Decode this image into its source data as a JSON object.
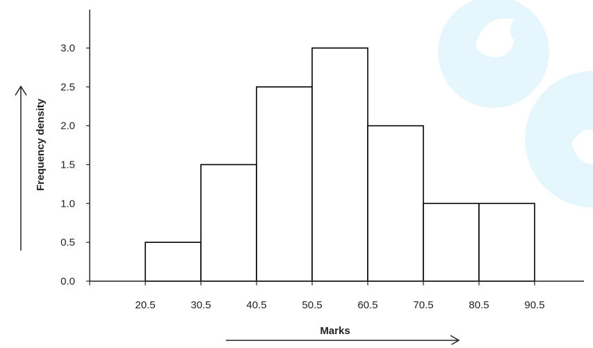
{
  "chart_data": {
    "type": "bar",
    "xlabel": "Marks",
    "ylabel": "Frequency density",
    "bins": [
      {
        "start": 20.5,
        "end": 30.5,
        "value": 0.5
      },
      {
        "start": 30.5,
        "end": 40.5,
        "value": 1.5
      },
      {
        "start": 40.5,
        "end": 50.5,
        "value": 2.5
      },
      {
        "start": 50.5,
        "end": 60.5,
        "value": 3.0
      },
      {
        "start": 60.5,
        "end": 70.5,
        "value": 2.0
      },
      {
        "start": 70.5,
        "end": 80.5,
        "value": 1.0
      },
      {
        "start": 80.5,
        "end": 90.5,
        "value": 1.0
      }
    ],
    "x_ticks": [
      "20.5",
      "30.5",
      "40.5",
      "50.5",
      "60.5",
      "70.5",
      "80.5",
      "90.5"
    ],
    "y_ticks": [
      "0.0",
      "0.5",
      "1.0",
      "1.5",
      "2.0",
      "2.5",
      "3.0"
    ],
    "xlim": [
      10.5,
      99.5
    ],
    "ylim": [
      0,
      3.5
    ],
    "grid": false,
    "bar_fill": "#ffffff",
    "bar_stroke": "#000000",
    "watermark_color": "#e6f6fd"
  }
}
